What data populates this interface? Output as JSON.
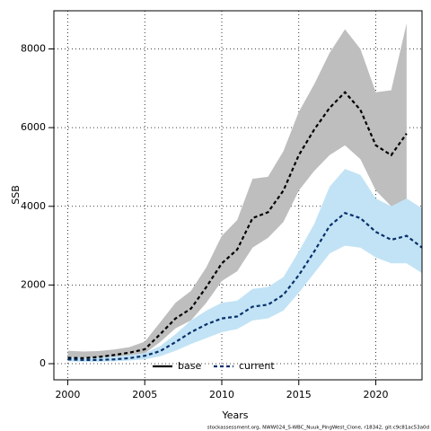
{
  "chart_data": {
    "type": "line",
    "xlabel": "Years",
    "ylabel": "SSB",
    "caption": "stockassessment.org, NWW024_S-WBC_Nuuk_PingWest_Clone, r18342, git:c9c81ac53a0d",
    "x": [
      2000,
      2001,
      2002,
      2003,
      2004,
      2005,
      2006,
      2007,
      2008,
      2009,
      2010,
      2011,
      2012,
      2013,
      2014,
      2015,
      2016,
      2017,
      2018,
      2019,
      2020,
      2021,
      2022,
      2023
    ],
    "series": [
      {
        "name": "base",
        "color": "#000000",
        "band_color": "#bebebe",
        "legend_dash": "solid",
        "values": [
          150,
          140,
          170,
          220,
          280,
          365,
          750,
          1150,
          1400,
          1950,
          2550,
          2900,
          3700,
          3850,
          4400,
          5300,
          5950,
          6500,
          6900,
          6450,
          5550,
          5300,
          5850,
          null
        ],
        "lower": [
          90,
          85,
          100,
          140,
          190,
          260,
          550,
          900,
          1100,
          1550,
          2100,
          2350,
          2950,
          3200,
          3600,
          4400,
          4900,
          5300,
          5550,
          5200,
          4400,
          4000,
          3900,
          null
        ],
        "upper": [
          330,
          310,
          320,
          360,
          420,
          560,
          1050,
          1550,
          1850,
          2450,
          3250,
          3650,
          4700,
          4750,
          5400,
          6400,
          7100,
          7900,
          8500,
          8000,
          6900,
          6950,
          8650,
          null
        ]
      },
      {
        "name": "current",
        "color": "#08306b",
        "band_color": "#c2e3f5",
        "legend_dash": "dashed",
        "values": [
          110,
          95,
          95,
          110,
          140,
          200,
          320,
          550,
          800,
          1000,
          1150,
          1200,
          1450,
          1500,
          1750,
          2250,
          2850,
          3500,
          3830,
          3700,
          3350,
          3150,
          3250,
          2950
        ],
        "lower": [
          60,
          50,
          50,
          60,
          80,
          110,
          190,
          330,
          500,
          650,
          800,
          880,
          1100,
          1150,
          1350,
          1800,
          2300,
          2800,
          3000,
          2950,
          2700,
          2550,
          2550,
          2300
        ],
        "upper": [
          180,
          160,
          160,
          180,
          220,
          270,
          450,
          750,
          1100,
          1350,
          1550,
          1600,
          1900,
          1950,
          2200,
          2850,
          3550,
          4500,
          4950,
          4800,
          4200,
          4000,
          4200,
          3950
        ]
      }
    ],
    "xlim": [
      1999.1,
      2023.0
    ],
    "ylim": [
      -410,
      8970
    ],
    "xticks": [
      2000,
      2005,
      2010,
      2015,
      2020
    ],
    "yticks": [
      0,
      2000,
      4000,
      6000,
      8000
    ],
    "grid": true,
    "legend_position": "bottom"
  }
}
